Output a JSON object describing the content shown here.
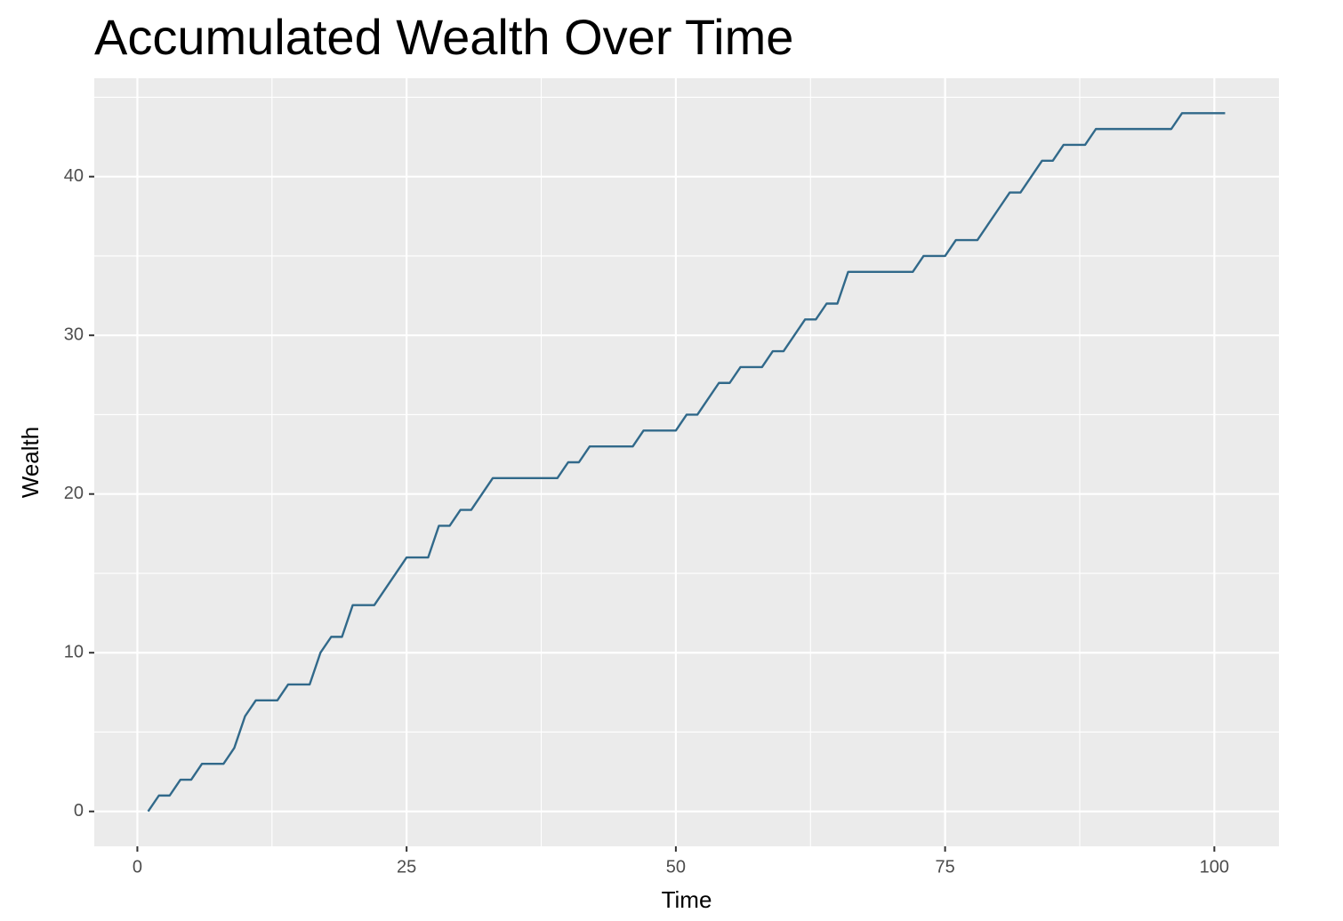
{
  "chart_data": {
    "type": "line",
    "title": "Accumulated Wealth Over Time",
    "x_label": "Time",
    "y_label": "Wealth",
    "x": [
      1,
      2,
      3,
      4,
      5,
      6,
      7,
      8,
      9,
      10,
      11,
      12,
      13,
      14,
      15,
      16,
      17,
      18,
      19,
      20,
      21,
      22,
      23,
      24,
      25,
      26,
      27,
      28,
      29,
      30,
      31,
      32,
      33,
      34,
      35,
      36,
      37,
      38,
      39,
      40,
      41,
      42,
      43,
      44,
      45,
      46,
      47,
      48,
      49,
      50,
      51,
      52,
      53,
      54,
      55,
      56,
      57,
      58,
      59,
      60,
      61,
      62,
      63,
      64,
      65,
      66,
      67,
      68,
      69,
      70,
      71,
      72,
      73,
      74,
      75,
      76,
      77,
      78,
      79,
      80,
      81,
      82,
      83,
      84,
      85,
      86,
      87,
      88,
      89,
      90,
      91,
      92,
      93,
      94,
      95,
      96,
      97,
      98,
      99,
      100,
      101
    ],
    "series": [
      {
        "color": "#31698a",
        "values": [
          0,
          1,
          1,
          2,
          2,
          3,
          3,
          3,
          4,
          6,
          7,
          7,
          7,
          8,
          8,
          8,
          10,
          11,
          11,
          13,
          13,
          13,
          14,
          15,
          16,
          16,
          16,
          18,
          18,
          19,
          19,
          20,
          21,
          21,
          21,
          21,
          21,
          21,
          21,
          22,
          22,
          23,
          23,
          23,
          23,
          23,
          24,
          24,
          24,
          24,
          25,
          25,
          26,
          27,
          27,
          28,
          28,
          28,
          29,
          29,
          30,
          31,
          31,
          32,
          32,
          34,
          34,
          34,
          34,
          34,
          34,
          34,
          35,
          35,
          35,
          36,
          36,
          36,
          37,
          38,
          39,
          39,
          40,
          41,
          41,
          42,
          42,
          42,
          43,
          43,
          43,
          43,
          43,
          43,
          43,
          43,
          44,
          44,
          44,
          44,
          44
        ]
      }
    ],
    "xlim": [
      -4,
      106
    ],
    "ylim": [
      -2.2,
      46.2
    ],
    "xticks": [
      0,
      25,
      50,
      75,
      100
    ],
    "yticks": [
      0,
      10,
      20,
      30,
      40
    ],
    "x_minor_breaks": [
      12.5,
      37.5,
      62.5,
      87.5
    ],
    "y_minor_breaks": [
      5,
      15,
      25,
      35,
      45
    ],
    "grid": true
  }
}
